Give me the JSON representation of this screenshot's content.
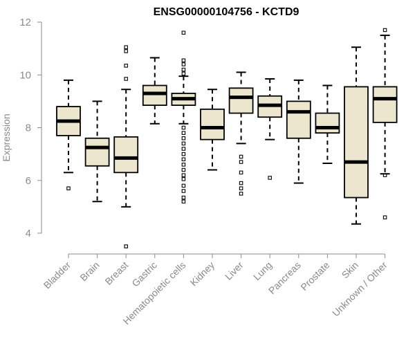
{
  "chart_data": {
    "type": "boxplot",
    "title": "ENSG00000104756 - KCTD9",
    "xlabel": "",
    "ylabel": "Expression",
    "ylim": [
      3.5,
      12
    ],
    "yticks": [
      4,
      6,
      8,
      10,
      12
    ],
    "categories": [
      "Bladder",
      "Brain",
      "Breast",
      "Gastric",
      "Hematopoietic cells",
      "Kidney",
      "Liver",
      "Lung",
      "Pancreas",
      "Prostate",
      "Skin",
      "Unknown / Other"
    ],
    "boxes": [
      {
        "name": "Bladder",
        "whisker_low": 6.3,
        "q1": 7.7,
        "median": 8.25,
        "q3": 8.8,
        "whisker_high": 9.8,
        "outliers": [
          5.7
        ]
      },
      {
        "name": "Brain",
        "whisker_low": 5.2,
        "q1": 6.55,
        "median": 7.25,
        "q3": 7.6,
        "whisker_high": 9.0,
        "outliers": []
      },
      {
        "name": "Breast",
        "whisker_low": 5.0,
        "q1": 6.3,
        "median": 6.85,
        "q3": 7.65,
        "whisker_high": 9.45,
        "outliers": [
          3.5,
          9.85,
          10.35,
          10.9,
          11.05
        ]
      },
      {
        "name": "Gastric",
        "whisker_low": 8.15,
        "q1": 8.85,
        "median": 9.3,
        "q3": 9.6,
        "whisker_high": 10.65,
        "outliers": []
      },
      {
        "name": "Hematopoietic cells",
        "whisker_low": 8.15,
        "q1": 8.85,
        "median": 9.1,
        "q3": 9.3,
        "whisker_high": 9.95,
        "outliers": [
          5.2,
          5.35,
          5.6,
          5.8,
          6.05,
          6.2,
          6.4,
          6.6,
          6.8,
          7.0,
          7.2,
          7.4,
          7.6,
          7.8,
          8.0,
          10.05,
          10.2,
          10.4,
          10.55,
          11.6
        ]
      },
      {
        "name": "Kidney",
        "whisker_low": 6.4,
        "q1": 7.55,
        "median": 8.0,
        "q3": 8.7,
        "whisker_high": 9.45,
        "outliers": []
      },
      {
        "name": "Liver",
        "whisker_low": 7.4,
        "q1": 8.55,
        "median": 9.15,
        "q3": 9.5,
        "whisker_high": 10.1,
        "outliers": [
          5.5,
          5.7,
          5.9,
          6.3,
          6.7,
          6.9
        ]
      },
      {
        "name": "Lung",
        "whisker_low": 7.55,
        "q1": 8.4,
        "median": 8.85,
        "q3": 9.2,
        "whisker_high": 9.85,
        "outliers": [
          6.1
        ]
      },
      {
        "name": "Pancreas",
        "whisker_low": 5.9,
        "q1": 7.6,
        "median": 8.6,
        "q3": 9.0,
        "whisker_high": 9.8,
        "outliers": []
      },
      {
        "name": "Prostate",
        "whisker_low": 6.65,
        "q1": 7.8,
        "median": 8.0,
        "q3": 8.55,
        "whisker_high": 9.6,
        "outliers": []
      },
      {
        "name": "Skin",
        "whisker_low": 4.35,
        "q1": 5.35,
        "median": 6.7,
        "q3": 9.55,
        "whisker_high": 11.05,
        "outliers": []
      },
      {
        "name": "Unknown / Other",
        "whisker_low": 6.25,
        "q1": 8.2,
        "median": 9.1,
        "q3": 9.55,
        "whisker_high": 11.5,
        "outliers": [
          4.6,
          6.2,
          11.7
        ]
      }
    ],
    "colors": {
      "box_fill": "#ede6cf",
      "line": "#000000",
      "axis_text": "#8a8a8a"
    }
  }
}
